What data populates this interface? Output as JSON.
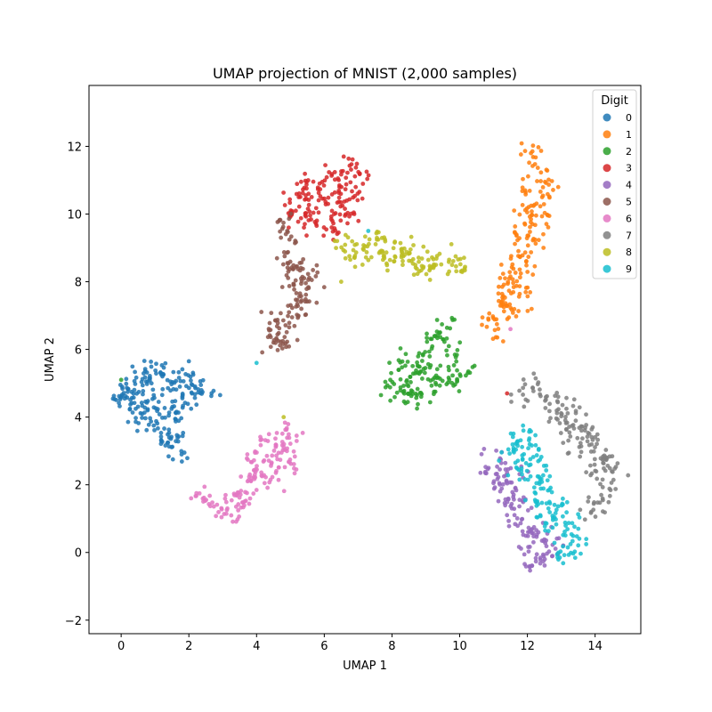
{
  "chart_data": {
    "type": "scatter",
    "title": "UMAP projection of MNIST (2,000 samples)",
    "xlabel": "UMAP 1",
    "ylabel": "UMAP 2",
    "xlim": [
      -0.95,
      15.35
    ],
    "ylim": [
      -2.4,
      13.8
    ],
    "xticks": [
      0,
      2,
      4,
      6,
      8,
      10,
      12,
      14
    ],
    "yticks": [
      -2,
      0,
      2,
      4,
      6,
      8,
      10,
      12
    ],
    "xtick_labels": [
      "0",
      "2",
      "4",
      "6",
      "8",
      "10",
      "12",
      "14"
    ],
    "ytick_labels": [
      "−2",
      "0",
      "2",
      "4",
      "6",
      "8",
      "10",
      "12"
    ],
    "grid": false,
    "legend": {
      "title": "Digit",
      "placement": "top-right"
    },
    "series": [
      {
        "name": "0",
        "color": "#1f77b4",
        "points": [
          [
            0.0,
            4.6
          ],
          [
            0.3,
            4.9
          ],
          [
            0.6,
            5.2
          ],
          [
            0.9,
            5.4
          ],
          [
            1.2,
            5.3
          ],
          [
            1.5,
            5.0
          ],
          [
            1.8,
            4.8
          ],
          [
            2.2,
            4.9
          ],
          [
            2.5,
            4.8
          ],
          [
            0.5,
            4.5
          ],
          [
            0.8,
            4.2
          ],
          [
            1.1,
            4.0
          ],
          [
            1.4,
            3.9
          ],
          [
            1.6,
            3.6
          ],
          [
            1.3,
            3.3
          ],
          [
            1.2,
            3.5
          ],
          [
            0.4,
            4.0
          ],
          [
            0.2,
            4.3
          ],
          [
            1.0,
            4.6
          ],
          [
            1.7,
            4.3
          ],
          [
            2.0,
            4.5
          ],
          [
            1.6,
            3.0
          ],
          [
            0.7,
            5.0
          ],
          [
            1.9,
            5.2
          ],
          [
            0.1,
            4.8
          ]
        ]
      },
      {
        "name": "1",
        "color": "#ff7f0e",
        "points": [
          [
            12.2,
            11.9
          ],
          [
            12.3,
            11.3
          ],
          [
            12.0,
            10.7
          ],
          [
            12.4,
            10.5
          ],
          [
            11.9,
            10.1
          ],
          [
            12.5,
            9.9
          ],
          [
            11.8,
            9.5
          ],
          [
            12.2,
            9.2
          ],
          [
            11.6,
            8.9
          ],
          [
            12.0,
            8.6
          ],
          [
            11.7,
            8.2
          ],
          [
            11.4,
            7.9
          ],
          [
            11.9,
            7.7
          ],
          [
            11.2,
            7.4
          ],
          [
            11.6,
            7.1
          ],
          [
            10.9,
            6.9
          ],
          [
            11.1,
            6.6
          ],
          [
            12.6,
            10.8
          ],
          [
            11.5,
            8.0
          ],
          [
            12.1,
            9.8
          ],
          [
            11.3,
            7.3
          ]
        ]
      },
      {
        "name": "2",
        "color": "#2ca02c",
        "points": [
          [
            8.2,
            5.6
          ],
          [
            8.6,
            5.5
          ],
          [
            9.0,
            5.9
          ],
          [
            9.3,
            6.2
          ],
          [
            9.6,
            6.6
          ],
          [
            9.8,
            5.8
          ],
          [
            9.5,
            5.3
          ],
          [
            9.1,
            5.0
          ],
          [
            8.7,
            4.8
          ],
          [
            8.3,
            4.7
          ],
          [
            8.0,
            4.9
          ],
          [
            8.4,
            5.2
          ],
          [
            8.9,
            5.4
          ],
          [
            9.4,
            4.9
          ],
          [
            9.9,
            5.2
          ],
          [
            8.5,
            4.6
          ],
          [
            9.2,
            6.4
          ],
          [
            10.1,
            5.3
          ]
        ]
      },
      {
        "name": "3",
        "color": "#d62728",
        "points": [
          [
            5.0,
            10.3
          ],
          [
            5.3,
            10.6
          ],
          [
            5.6,
            10.9
          ],
          [
            6.0,
            11.0
          ],
          [
            6.4,
            11.2
          ],
          [
            6.8,
            11.4
          ],
          [
            7.0,
            11.1
          ],
          [
            6.9,
            10.6
          ],
          [
            6.6,
            10.2
          ],
          [
            6.2,
            9.9
          ],
          [
            5.8,
            9.8
          ],
          [
            5.5,
            10.0
          ],
          [
            6.1,
            10.5
          ],
          [
            6.5,
            10.8
          ],
          [
            5.7,
            10.3
          ],
          [
            6.7,
            9.9
          ],
          [
            5.2,
            9.9
          ],
          [
            6.3,
            9.6
          ]
        ]
      },
      {
        "name": "4",
        "color": "#9467bd",
        "points": [
          [
            10.8,
            2.6
          ],
          [
            11.2,
            2.5
          ],
          [
            11.5,
            2.3
          ],
          [
            11.3,
            2.0
          ],
          [
            11.6,
            1.7
          ],
          [
            11.8,
            1.3
          ],
          [
            11.6,
            0.9
          ],
          [
            12.0,
            0.7
          ],
          [
            12.3,
            0.5
          ],
          [
            12.6,
            0.3
          ],
          [
            12.8,
            0.0
          ],
          [
            12.4,
            -0.2
          ],
          [
            12.2,
            -0.3
          ],
          [
            11.9,
            0.2
          ],
          [
            11.4,
            1.5
          ],
          [
            11.0,
            2.2
          ]
        ]
      },
      {
        "name": "5",
        "color": "#8c564b",
        "points": [
          [
            4.7,
            9.8
          ],
          [
            5.0,
            9.3
          ],
          [
            4.9,
            8.8
          ],
          [
            5.2,
            8.5
          ],
          [
            5.4,
            8.2
          ],
          [
            5.1,
            7.9
          ],
          [
            5.4,
            7.5
          ],
          [
            5.2,
            7.1
          ],
          [
            4.9,
            6.8
          ],
          [
            4.6,
            6.5
          ],
          [
            4.4,
            6.9
          ],
          [
            4.6,
            6.2
          ],
          [
            4.8,
            6.0
          ],
          [
            5.3,
            7.3
          ],
          [
            5.6,
            8.0
          ],
          [
            5.0,
            8.3
          ]
        ]
      },
      {
        "name": "6",
        "color": "#e377c2",
        "points": [
          [
            2.4,
            1.8
          ],
          [
            2.7,
            1.5
          ],
          [
            3.0,
            1.3
          ],
          [
            3.3,
            1.1
          ],
          [
            3.6,
            1.4
          ],
          [
            3.9,
            1.9
          ],
          [
            4.1,
            2.3
          ],
          [
            4.4,
            2.8
          ],
          [
            4.7,
            3.2
          ],
          [
            5.0,
            3.6
          ],
          [
            4.9,
            3.1
          ],
          [
            4.6,
            2.6
          ],
          [
            4.3,
            3.3
          ],
          [
            4.0,
            2.7
          ],
          [
            3.8,
            2.2
          ],
          [
            4.5,
            2.2
          ],
          [
            4.9,
            2.6
          ],
          [
            3.5,
            1.6
          ]
        ]
      },
      {
        "name": "7",
        "color": "#7f7f7f",
        "points": [
          [
            11.8,
            4.6
          ],
          [
            12.2,
            4.9
          ],
          [
            12.6,
            4.6
          ],
          [
            13.0,
            4.4
          ],
          [
            13.4,
            4.1
          ],
          [
            13.7,
            3.7
          ],
          [
            14.0,
            3.3
          ],
          [
            14.3,
            2.9
          ],
          [
            14.5,
            2.5
          ],
          [
            14.4,
            2.0
          ],
          [
            14.1,
            1.6
          ],
          [
            13.9,
            2.3
          ],
          [
            13.5,
            3.1
          ],
          [
            13.1,
            3.8
          ],
          [
            12.8,
            4.1
          ],
          [
            14.0,
            1.2
          ],
          [
            13.3,
            3.5
          ],
          [
            14.2,
            2.7
          ]
        ]
      },
      {
        "name": "8",
        "color": "#bcbd22",
        "points": [
          [
            6.6,
            8.9
          ],
          [
            7.0,
            9.2
          ],
          [
            7.4,
            9.0
          ],
          [
            7.8,
            8.8
          ],
          [
            8.2,
            8.7
          ],
          [
            8.6,
            8.8
          ],
          [
            9.0,
            8.6
          ],
          [
            9.4,
            8.7
          ],
          [
            9.8,
            8.5
          ],
          [
            10.0,
            8.4
          ],
          [
            8.0,
            8.5
          ],
          [
            7.6,
            9.3
          ],
          [
            8.4,
            9.0
          ],
          [
            9.2,
            8.3
          ],
          [
            8.8,
            8.4
          ],
          [
            7.2,
            8.6
          ]
        ]
      },
      {
        "name": "9",
        "color": "#17becf",
        "points": [
          [
            11.6,
            3.2
          ],
          [
            11.9,
            3.5
          ],
          [
            12.2,
            3.1
          ],
          [
            12.0,
            2.7
          ],
          [
            12.4,
            2.4
          ],
          [
            12.6,
            2.1
          ],
          [
            12.8,
            1.7
          ],
          [
            13.0,
            1.3
          ],
          [
            13.2,
            0.9
          ],
          [
            13.4,
            0.5
          ],
          [
            13.3,
            0.1
          ],
          [
            13.0,
            -0.1
          ],
          [
            12.7,
            0.6
          ],
          [
            12.5,
            1.0
          ],
          [
            12.3,
            1.4
          ],
          [
            11.8,
            2.4
          ],
          [
            12.1,
            2.0
          ],
          [
            11.5,
            2.9
          ]
        ]
      }
    ]
  }
}
